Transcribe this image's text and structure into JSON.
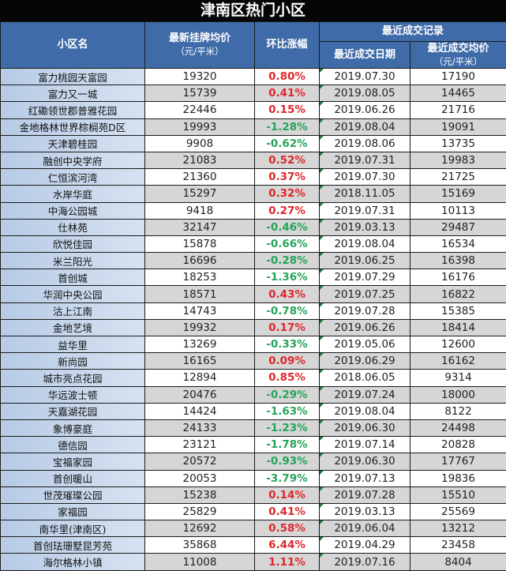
{
  "title": "津南区热门小区",
  "headers": {
    "name": "小区名",
    "list_price": "最新挂牌均价",
    "list_price_unit": "（元/平米）",
    "change": "环比涨幅",
    "recent_group": "最近成交记录",
    "recent_date": "最近成交日期",
    "recent_price": "最近成交均价",
    "recent_price_unit": "（元/平米）"
  },
  "colors": {
    "header_bg": "#3f6ba8",
    "title_bg": "#050505",
    "up": "#e0262b",
    "down": "#27a35a"
  },
  "rows": [
    {
      "name": "富力桃园天富园",
      "list_price": "19320",
      "change": "0.80%",
      "date": "2019.07.30",
      "deal_price": "17190"
    },
    {
      "name": "富力又一城",
      "list_price": "15739",
      "change": "0.41%",
      "date": "2019.08.05",
      "deal_price": "14465"
    },
    {
      "name": "红磡领世郡普雅花园",
      "list_price": "22446",
      "change": "0.15%",
      "date": "2019.06.26",
      "deal_price": "21716"
    },
    {
      "name": "金地格林世界棕榈苑D区",
      "list_price": "19993",
      "change": "-1.28%",
      "date": "2019.08.04",
      "deal_price": "19091"
    },
    {
      "name": "天津碧桂园",
      "list_price": "9908",
      "change": "-0.62%",
      "date": "2019.08.06",
      "deal_price": "13735"
    },
    {
      "name": "融创中央学府",
      "list_price": "21083",
      "change": "0.52%",
      "date": "2019.07.31",
      "deal_price": "19983"
    },
    {
      "name": "仁恒滨河湾",
      "list_price": "21360",
      "change": "0.37%",
      "date": "2019.07.30",
      "deal_price": "21725"
    },
    {
      "name": "水岸华庭",
      "list_price": "15297",
      "change": "0.32%",
      "date": "2018.11.05",
      "deal_price": "15169"
    },
    {
      "name": "中海公园城",
      "list_price": "9418",
      "change": "0.27%",
      "date": "2019.07.31",
      "deal_price": "10113"
    },
    {
      "name": "仕林苑",
      "list_price": "32147",
      "change": "-0.46%",
      "date": "2019.03.13",
      "deal_price": "29487"
    },
    {
      "name": "欣悦佳园",
      "list_price": "15878",
      "change": "-0.66%",
      "date": "2019.08.04",
      "deal_price": "16534"
    },
    {
      "name": "米兰阳光",
      "list_price": "16696",
      "change": "-0.28%",
      "date": "2019.06.25",
      "deal_price": "16398"
    },
    {
      "name": "首创城",
      "list_price": "18253",
      "change": "-1.36%",
      "date": "2019.07.29",
      "deal_price": "16176"
    },
    {
      "name": "华润中央公园",
      "list_price": "18571",
      "change": "0.43%",
      "date": "2019.07.25",
      "deal_price": "16822"
    },
    {
      "name": "沽上江南",
      "list_price": "14743",
      "change": "-0.78%",
      "date": "2019.07.28",
      "deal_price": "15385"
    },
    {
      "name": "金地艺境",
      "list_price": "19932",
      "change": "0.17%",
      "date": "2019.06.26",
      "deal_price": "18414"
    },
    {
      "name": "益华里",
      "list_price": "13269",
      "change": "-0.33%",
      "date": "2019.05.06",
      "deal_price": "12600"
    },
    {
      "name": "新尚园",
      "list_price": "16165",
      "change": "0.09%",
      "date": "2019.06.29",
      "deal_price": "16162"
    },
    {
      "name": "城市亮点花园",
      "list_price": "12894",
      "change": "0.85%",
      "date": "2018.06.05",
      "deal_price": "9314"
    },
    {
      "name": "华远波士顿",
      "list_price": "20476",
      "change": "-0.29%",
      "date": "2019.07.24",
      "deal_price": "18000"
    },
    {
      "name": "天嘉湖花园",
      "list_price": "14424",
      "change": "-1.63%",
      "date": "2019.08.04",
      "deal_price": "8122"
    },
    {
      "name": "象博豪庭",
      "list_price": "24133",
      "change": "-1.23%",
      "date": "2019.06.30",
      "deal_price": "24498"
    },
    {
      "name": "德信园",
      "list_price": "23121",
      "change": "-1.78%",
      "date": "2019.07.14",
      "deal_price": "20828"
    },
    {
      "name": "宝福家园",
      "list_price": "20572",
      "change": "-0.93%",
      "date": "2019.06.30",
      "deal_price": "17767"
    },
    {
      "name": "首创暖山",
      "list_price": "20053",
      "change": "-3.79%",
      "date": "2019.07.13",
      "deal_price": "19836"
    },
    {
      "name": "世茂璀璨公园",
      "list_price": "15238",
      "change": "0.14%",
      "date": "2019.07.28",
      "deal_price": "15510"
    },
    {
      "name": "家福园",
      "list_price": "25829",
      "change": "0.41%",
      "date": "2019.03.13",
      "deal_price": "25569"
    },
    {
      "name": "南华里(津南区)",
      "list_price": "12692",
      "change": "0.58%",
      "date": "2019.06.04",
      "deal_price": "13212"
    },
    {
      "name": "首创珐珊墅昆芳苑",
      "list_price": "35868",
      "change": "6.44%",
      "date": "2019.04.29",
      "deal_price": "23458"
    },
    {
      "name": "海尔格林小镇",
      "list_price": "11008",
      "change": "1.11%",
      "date": "2019.07.16",
      "deal_price": "8404"
    }
  ]
}
